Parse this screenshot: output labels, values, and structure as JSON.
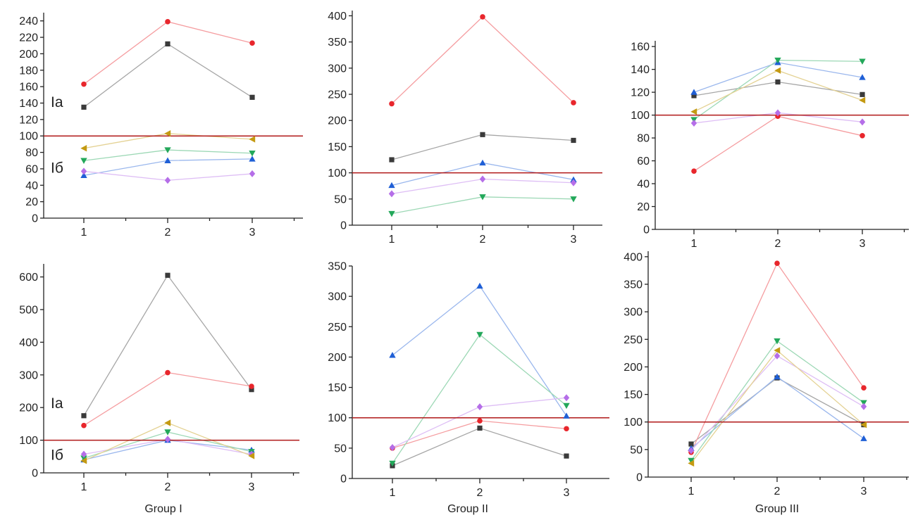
{
  "colors": {
    "black": "#3a3a3a",
    "red": "#e8262c",
    "blue": "#1f5fd6",
    "green": "#23a85a",
    "purple": "#b56ee8",
    "gold": "#c49a12",
    "reference_line": "#b01818"
  },
  "captions": [
    "Group I",
    "Group II",
    "Group III"
  ],
  "chart_data": [
    {
      "type": "line",
      "x": [
        1,
        2,
        3
      ],
      "ylim": [
        0,
        250
      ],
      "yticks": [
        0,
        20,
        40,
        60,
        80,
        100,
        120,
        140,
        160,
        180,
        200,
        220,
        240
      ],
      "reference_line": 100,
      "annotations": [
        {
          "text": "Ia",
          "y": 142
        },
        {
          "text": "Iб",
          "y": 62
        }
      ],
      "series": [
        {
          "color": "black",
          "marker": "square",
          "values": [
            135,
            212,
            147
          ]
        },
        {
          "color": "red",
          "marker": "circle",
          "values": [
            163,
            239,
            213
          ]
        },
        {
          "color": "blue",
          "marker": "triangle-up",
          "values": [
            52,
            70,
            72
          ]
        },
        {
          "color": "green",
          "marker": "triangle-down",
          "values": [
            70,
            83,
            79
          ]
        },
        {
          "color": "purple",
          "marker": "diamond",
          "values": [
            57,
            46,
            54
          ]
        },
        {
          "color": "gold",
          "marker": "triangle-left",
          "values": [
            85,
            103,
            96
          ]
        }
      ]
    },
    {
      "type": "line",
      "x": [
        1,
        2,
        3
      ],
      "ylim": [
        0,
        410
      ],
      "yticks": [
        0,
        50,
        100,
        150,
        200,
        250,
        300,
        350,
        400
      ],
      "reference_line": 100,
      "annotations": [],
      "series": [
        {
          "color": "black",
          "marker": "square",
          "values": [
            125,
            173,
            162
          ]
        },
        {
          "color": "red",
          "marker": "circle",
          "values": [
            232,
            398,
            234
          ]
        },
        {
          "color": "blue",
          "marker": "triangle-up",
          "values": [
            76,
            119,
            87
          ]
        },
        {
          "color": "green",
          "marker": "triangle-down",
          "values": [
            22,
            54,
            50
          ]
        },
        {
          "color": "purple",
          "marker": "diamond",
          "values": [
            60,
            88,
            81
          ]
        }
      ]
    },
    {
      "type": "line",
      "x": [
        1,
        2,
        3
      ],
      "ylim": [
        0,
        165
      ],
      "yticks": [
        0,
        20,
        40,
        60,
        80,
        100,
        120,
        140,
        160
      ],
      "reference_line": 100,
      "annotations": [],
      "series": [
        {
          "color": "black",
          "marker": "square",
          "values": [
            117,
            129,
            118
          ]
        },
        {
          "color": "red",
          "marker": "circle",
          "values": [
            51,
            99,
            82
          ]
        },
        {
          "color": "blue",
          "marker": "triangle-up",
          "values": [
            120,
            146,
            133
          ]
        },
        {
          "color": "green",
          "marker": "triangle-down",
          "values": [
            96,
            148,
            147
          ]
        },
        {
          "color": "purple",
          "marker": "diamond",
          "values": [
            93,
            102,
            94
          ]
        },
        {
          "color": "gold",
          "marker": "triangle-left",
          "values": [
            103,
            139,
            113
          ]
        }
      ]
    },
    {
      "type": "line",
      "x": [
        1,
        2,
        3
      ],
      "ylim": [
        0,
        640
      ],
      "yticks": [
        0,
        100,
        200,
        300,
        400,
        500,
        600
      ],
      "reference_line": 100,
      "annotations": [
        {
          "text": "Ia",
          "y": 215
        },
        {
          "text": "Iб",
          "y": 57
        }
      ],
      "series": [
        {
          "color": "black",
          "marker": "square",
          "values": [
            175,
            605,
            255
          ]
        },
        {
          "color": "red",
          "marker": "circle",
          "values": [
            145,
            307,
            265
          ]
        },
        {
          "color": "blue",
          "marker": "triangle-up",
          "values": [
            40,
            100,
            70
          ]
        },
        {
          "color": "green",
          "marker": "triangle-down",
          "values": [
            45,
            125,
            65
          ]
        },
        {
          "color": "purple",
          "marker": "diamond",
          "values": [
            57,
            103,
            57
          ]
        },
        {
          "color": "gold",
          "marker": "triangle-left",
          "values": [
            37,
            153,
            52
          ]
        }
      ]
    },
    {
      "type": "line",
      "x": [
        1,
        2,
        3
      ],
      "ylim": [
        0,
        350
      ],
      "yticks": [
        0,
        50,
        100,
        150,
        200,
        250,
        300,
        350
      ],
      "reference_line": 100,
      "annotations": [],
      "series": [
        {
          "color": "black",
          "marker": "square",
          "values": [
            21,
            83,
            37
          ]
        },
        {
          "color": "red",
          "marker": "circle",
          "values": [
            50,
            95,
            82
          ]
        },
        {
          "color": "blue",
          "marker": "triangle-up",
          "values": [
            203,
            317,
            103
          ]
        },
        {
          "color": "green",
          "marker": "triangle-down",
          "values": [
            25,
            237,
            120
          ]
        },
        {
          "color": "purple",
          "marker": "diamond",
          "values": [
            51,
            118,
            133
          ]
        }
      ]
    },
    {
      "type": "line",
      "x": [
        1,
        2,
        3
      ],
      "ylim": [
        0,
        410
      ],
      "yticks": [
        0,
        50,
        100,
        150,
        200,
        250,
        300,
        350,
        400
      ],
      "reference_line": 100,
      "annotations": [],
      "series": [
        {
          "color": "black",
          "marker": "square",
          "values": [
            60,
            180,
            95
          ]
        },
        {
          "color": "red",
          "marker": "circle",
          "values": [
            45,
            388,
            162
          ]
        },
        {
          "color": "blue",
          "marker": "triangle-up",
          "values": [
            52,
            182,
            70
          ]
        },
        {
          "color": "green",
          "marker": "triangle-down",
          "values": [
            30,
            247,
            135
          ]
        },
        {
          "color": "purple",
          "marker": "diamond",
          "values": [
            48,
            220,
            128
          ]
        },
        {
          "color": "gold",
          "marker": "triangle-left",
          "values": [
            25,
            230,
            95
          ]
        }
      ]
    }
  ]
}
